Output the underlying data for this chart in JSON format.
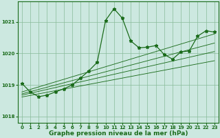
{
  "xlabel": "Graphe pression niveau de la mer (hPa)",
  "xlim": [
    -0.5,
    23.5
  ],
  "ylim": [
    1017.8,
    1021.65
  ],
  "yticks": [
    1018,
    1019,
    1020,
    1021
  ],
  "xticks": [
    0,
    1,
    2,
    3,
    4,
    5,
    6,
    7,
    8,
    9,
    10,
    11,
    12,
    13,
    14,
    15,
    16,
    17,
    18,
    19,
    20,
    21,
    22,
    23
  ],
  "bg_color": "#cce8e0",
  "grid_color": "#88bb99",
  "line_color": "#1a6b1a",
  "linear_series": [
    [
      1018.62,
      1018.67,
      1018.72,
      1018.77,
      1018.82,
      1018.87,
      1018.92,
      1018.97,
      1019.02,
      1019.07,
      1019.12,
      1019.17,
      1019.22,
      1019.27,
      1019.32,
      1019.37,
      1019.42,
      1019.47,
      1019.52,
      1019.57,
      1019.62,
      1019.67,
      1019.72,
      1019.77
    ],
    [
      1018.68,
      1018.74,
      1018.8,
      1018.86,
      1018.92,
      1018.98,
      1019.04,
      1019.1,
      1019.16,
      1019.22,
      1019.28,
      1019.34,
      1019.4,
      1019.46,
      1019.52,
      1019.58,
      1019.64,
      1019.7,
      1019.76,
      1019.82,
      1019.88,
      1019.94,
      1020.0,
      1020.06
    ],
    [
      1018.72,
      1018.79,
      1018.86,
      1018.93,
      1019.0,
      1019.07,
      1019.14,
      1019.21,
      1019.28,
      1019.35,
      1019.42,
      1019.49,
      1019.56,
      1019.63,
      1019.7,
      1019.77,
      1019.84,
      1019.91,
      1019.98,
      1020.05,
      1020.12,
      1020.19,
      1020.26,
      1020.33
    ],
    [
      1018.78,
      1018.86,
      1018.94,
      1019.02,
      1019.1,
      1019.18,
      1019.26,
      1019.34,
      1019.42,
      1019.5,
      1019.58,
      1019.66,
      1019.74,
      1019.82,
      1019.9,
      1019.98,
      1020.06,
      1020.14,
      1020.22,
      1020.3,
      1020.38,
      1020.46,
      1020.54,
      1020.62
    ]
  ],
  "main_series": [
    1019.05,
    1018.78,
    1018.63,
    1018.68,
    1018.78,
    1018.88,
    1019.0,
    1019.22,
    1019.45,
    1019.72,
    1021.05,
    1021.42,
    1021.12,
    1020.4,
    1020.18,
    1020.2,
    1020.25,
    1019.97,
    1019.82,
    1020.05,
    1020.08,
    1020.55,
    1020.72,
    1020.68
  ],
  "marker": "*",
  "marker_size": 3.5,
  "line_width": 0.9,
  "label_fontsize": 6.5,
  "tick_fontsize": 5.0
}
